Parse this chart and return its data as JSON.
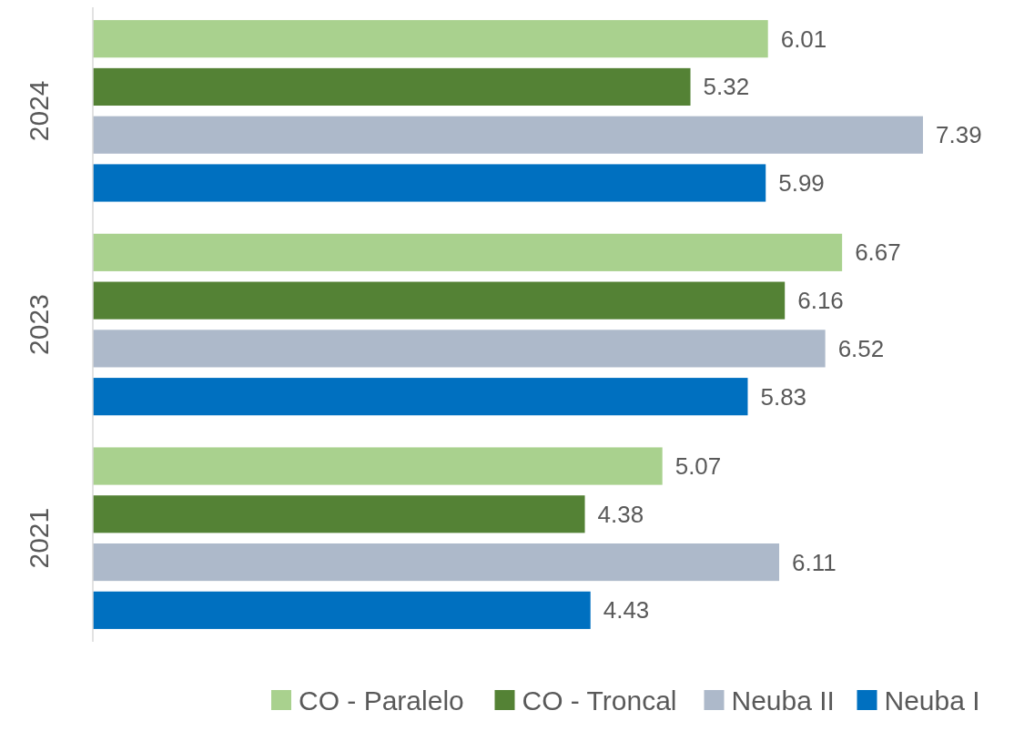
{
  "chart_data": {
    "type": "bar",
    "orientation": "horizontal",
    "categories": [
      "2024",
      "2023",
      "2021"
    ],
    "series": [
      {
        "name": "CO - Paralelo",
        "color": "#a9d18e",
        "values": [
          6.01,
          6.67,
          5.07
        ]
      },
      {
        "name": "CO - Troncal",
        "color": "#548235",
        "values": [
          5.32,
          6.16,
          4.38
        ]
      },
      {
        "name": "Neuba II",
        "color": "#adb9ca",
        "values": [
          7.39,
          6.52,
          6.11
        ]
      },
      {
        "name": "Neuba I",
        "color": "#0070c0",
        "values": [
          5.99,
          5.83,
          4.43
        ]
      }
    ],
    "data_labels": true,
    "legend": "bottom"
  }
}
